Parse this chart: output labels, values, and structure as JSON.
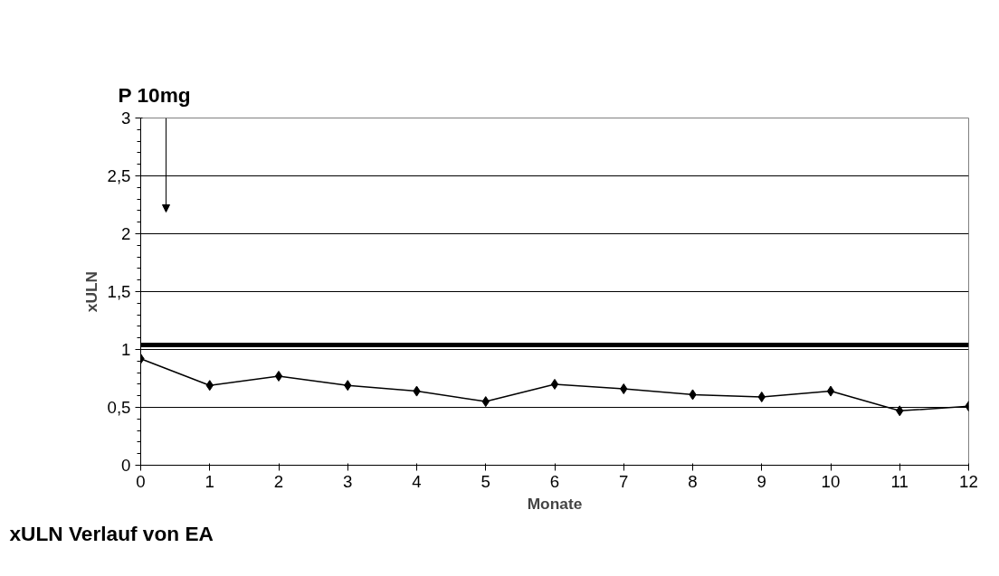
{
  "chart_data": {
    "type": "line",
    "xlabel": "Monate",
    "ylabel": "xULN",
    "x": [
      0,
      1,
      2,
      3,
      4,
      5,
      6,
      7,
      8,
      9,
      10,
      11,
      12
    ],
    "series": [
      {
        "color": "#000000",
        "values": [
          0.92,
          0.69,
          0.77,
          0.69,
          0.64,
          0.55,
          0.7,
          0.66,
          0.61,
          0.59,
          0.64,
          0.47,
          0.51
        ]
      }
    ],
    "xlim": [
      0,
      12
    ],
    "xticks": [
      0,
      1,
      2,
      3,
      4,
      5,
      6,
      7,
      8,
      9,
      10,
      11,
      12
    ],
    "ylim": [
      0,
      3
    ],
    "yticks": [
      0,
      {
        "value": 0.5,
        "label": "0,5"
      },
      1,
      {
        "value": 1.5,
        "label": "1,5"
      },
      2,
      {
        "value": 2.5,
        "label": "2,5"
      },
      3
    ],
    "ref_lines": [
      {
        "axis": "y",
        "value": 1.04,
        "color": "#000000"
      }
    ],
    "annotations": [
      "P 10mg",
      "xULN Verlauf von EA"
    ],
    "grid": "y",
    "marker": "diamond",
    "line_style": "solid"
  }
}
